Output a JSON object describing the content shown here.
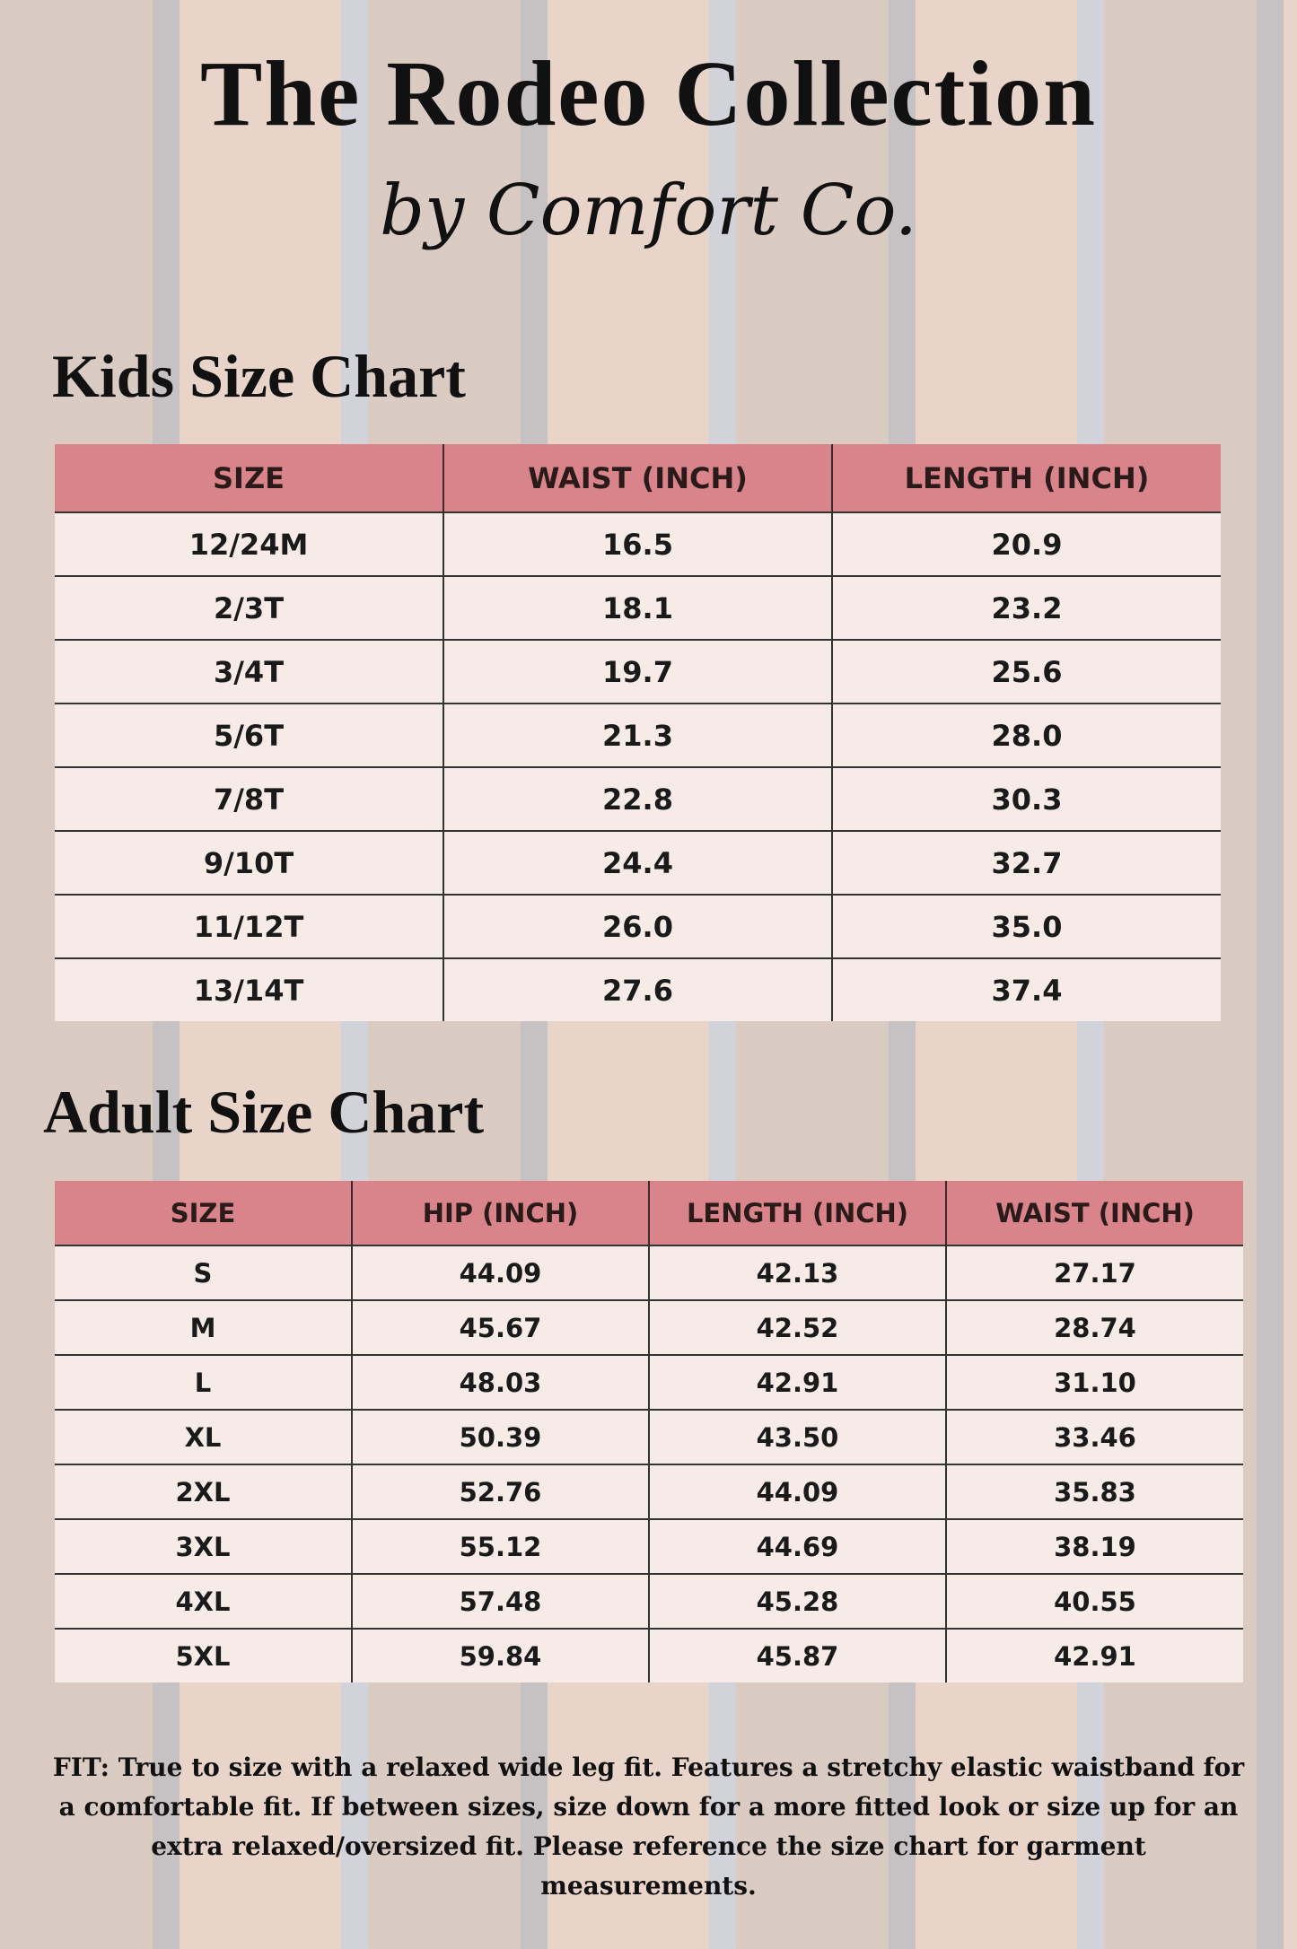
{
  "title": "The Rodeo Collection",
  "subtitle": "by Comfort Co.",
  "kids_chart": {
    "title": "Kids Size Chart",
    "headers": [
      "SIZE",
      "WAIST (INCH)",
      "LENGTH (INCH)"
    ],
    "rows": [
      [
        "12/24M",
        "16.5",
        "20.9"
      ],
      [
        "2/3T",
        "18.1",
        "23.2"
      ],
      [
        "3/4T",
        "19.7",
        "25.6"
      ],
      [
        "5/6T",
        "21.3",
        "28.0"
      ],
      [
        "7/8T",
        "22.8",
        "30.3"
      ],
      [
        "9/10T",
        "24.4",
        "32.7"
      ],
      [
        "11/12T",
        "26.0",
        "35.0"
      ],
      [
        "13/14T",
        "27.6",
        "37.4"
      ]
    ]
  },
  "adult_chart": {
    "title": "Adult Size Chart",
    "headers": [
      "SIZE",
      "HIP (INCH)",
      "LENGTH (INCH)",
      "WAIST (INCH)"
    ],
    "rows": [
      [
        "S",
        "44.09",
        "42.13",
        "27.17"
      ],
      [
        "M",
        "45.67",
        "42.52",
        "28.74"
      ],
      [
        "L",
        "48.03",
        "42.91",
        "31.10"
      ],
      [
        "XL",
        "50.39",
        "43.50",
        "33.46"
      ],
      [
        "2XL",
        "52.76",
        "44.09",
        "35.83"
      ],
      [
        "3XL",
        "55.12",
        "44.69",
        "38.19"
      ],
      [
        "4XL",
        "57.48",
        "45.28",
        "40.55"
      ],
      [
        "5XL",
        "59.84",
        "45.87",
        "42.91"
      ]
    ]
  },
  "fit_note": "FIT: True to size with a relaxed wide leg fit. Features a stretchy elastic waistband for a comfortable fit. If between sizes, size down for a more fitted look or size up for an extra relaxed/oversized fit. Please reference the size chart for garment measurements."
}
